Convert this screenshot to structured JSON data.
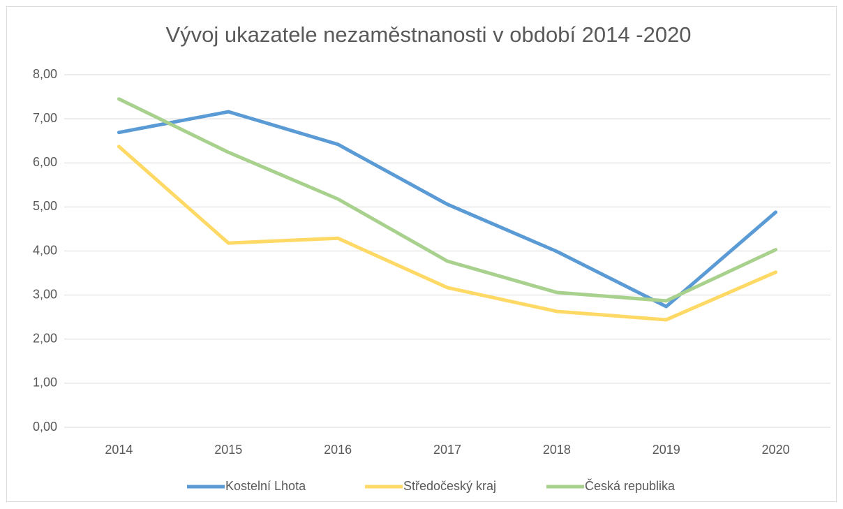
{
  "chart_data": {
    "type": "line",
    "title": "Vývoj ukazatele nezaměstnanosti v období 2014 -2020",
    "categories": [
      "2014",
      "2015",
      "2016",
      "2017",
      "2018",
      "2019",
      "2020"
    ],
    "series": [
      {
        "name": "Kostelní Lhota",
        "color": "#5b9bd5",
        "values": [
          6.69,
          7.16,
          6.42,
          5.06,
          3.99,
          2.74,
          4.88
        ]
      },
      {
        "name": "Středočeský kraj",
        "color": "#ffd966",
        "values": [
          6.37,
          4.18,
          4.29,
          3.17,
          2.63,
          2.44,
          3.52
        ]
      },
      {
        "name": "Česká republika",
        "color": "#a9d18e",
        "values": [
          7.45,
          6.24,
          5.18,
          3.77,
          3.06,
          2.87,
          4.03
        ]
      }
    ],
    "ylim": [
      0,
      8
    ],
    "yticks": [
      {
        "value": 0,
        "label": "0,00"
      },
      {
        "value": 1,
        "label": "1,00"
      },
      {
        "value": 2,
        "label": "2,00"
      },
      {
        "value": 3,
        "label": "3,00"
      },
      {
        "value": 4,
        "label": "4,00"
      },
      {
        "value": 5,
        "label": "5,00"
      },
      {
        "value": 6,
        "label": "6,00"
      },
      {
        "value": 7,
        "label": "7,00"
      },
      {
        "value": 8,
        "label": "8,00"
      }
    ],
    "grid": true,
    "legend": "bottom"
  }
}
